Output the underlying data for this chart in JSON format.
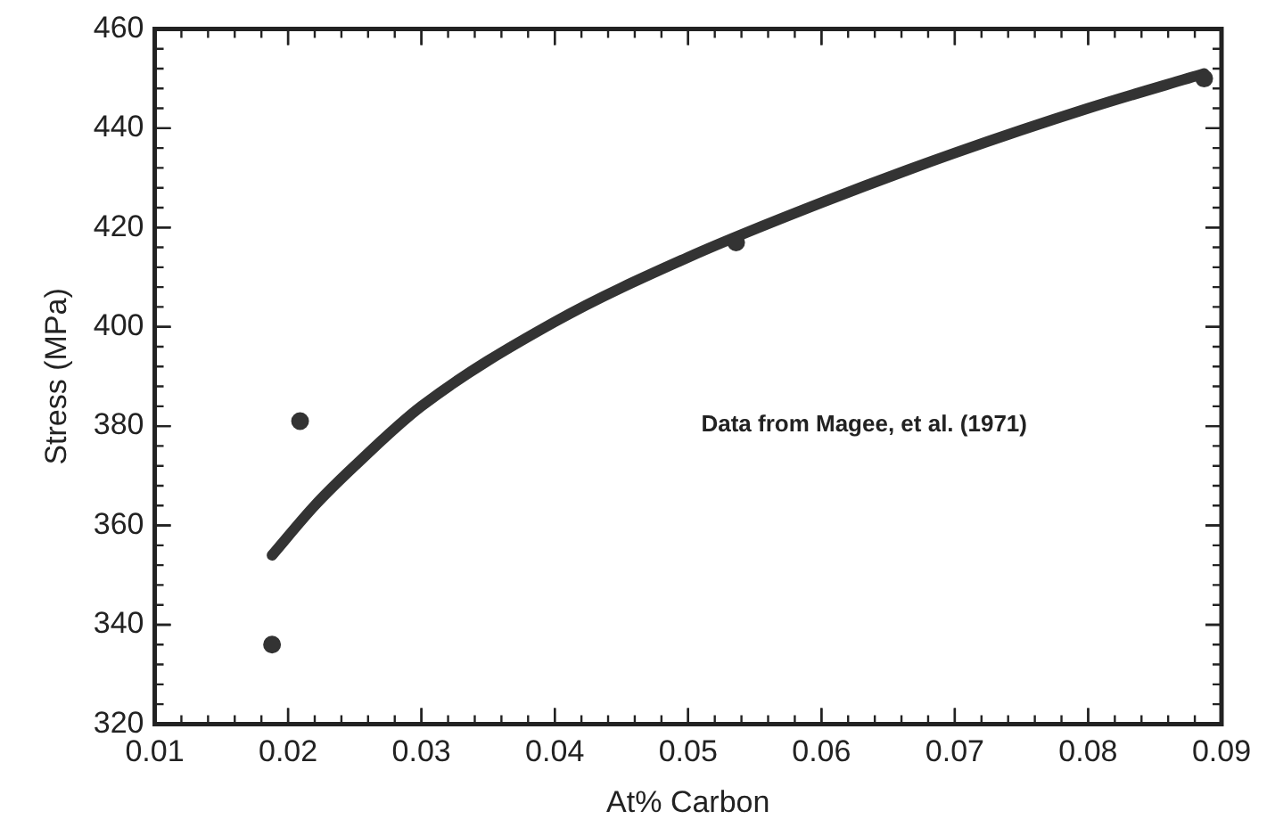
{
  "chart_data": {
    "type": "scatter",
    "xlabel": "At% Carbon",
    "ylabel": "Stress (MPa)",
    "xlim": [
      0.01,
      0.09
    ],
    "xticks": [
      {
        "value": 0.01,
        "label": "0.01"
      },
      {
        "value": 0.02,
        "label": "0.02"
      },
      {
        "value": 0.03,
        "label": "0.03"
      },
      {
        "value": 0.04,
        "label": "0.04"
      },
      {
        "value": 0.05,
        "label": "0.05"
      },
      {
        "value": 0.06,
        "label": "0.06"
      },
      {
        "value": 0.07,
        "label": "0.07"
      },
      {
        "value": 0.08,
        "label": "0.08"
      },
      {
        "value": 0.09,
        "label": "0.09"
      }
    ],
    "ylim": [
      320,
      460
    ],
    "yticks": [
      320,
      340,
      360,
      380,
      400,
      420,
      440,
      460
    ],
    "grid": false,
    "legend": false,
    "marker": "circle",
    "annotations": [
      "Data from Magee, et al. (1971)"
    ],
    "series": [
      {
        "type": "scatter",
        "color": "#333333",
        "x": [
          0.0188,
          0.0209,
          0.0536,
          0.0887
        ],
        "values": [
          336,
          381,
          417,
          450
        ]
      },
      {
        "type": "line",
        "color": "#333333",
        "line_style": "solid",
        "marker": "none",
        "x": [
          0.0188,
          0.022,
          0.025,
          0.03,
          0.04,
          0.05,
          0.06,
          0.07,
          0.08,
          0.0887
        ],
        "values": [
          354,
          364,
          372,
          384,
          401,
          414,
          425,
          435,
          444,
          451
        ]
      }
    ]
  }
}
